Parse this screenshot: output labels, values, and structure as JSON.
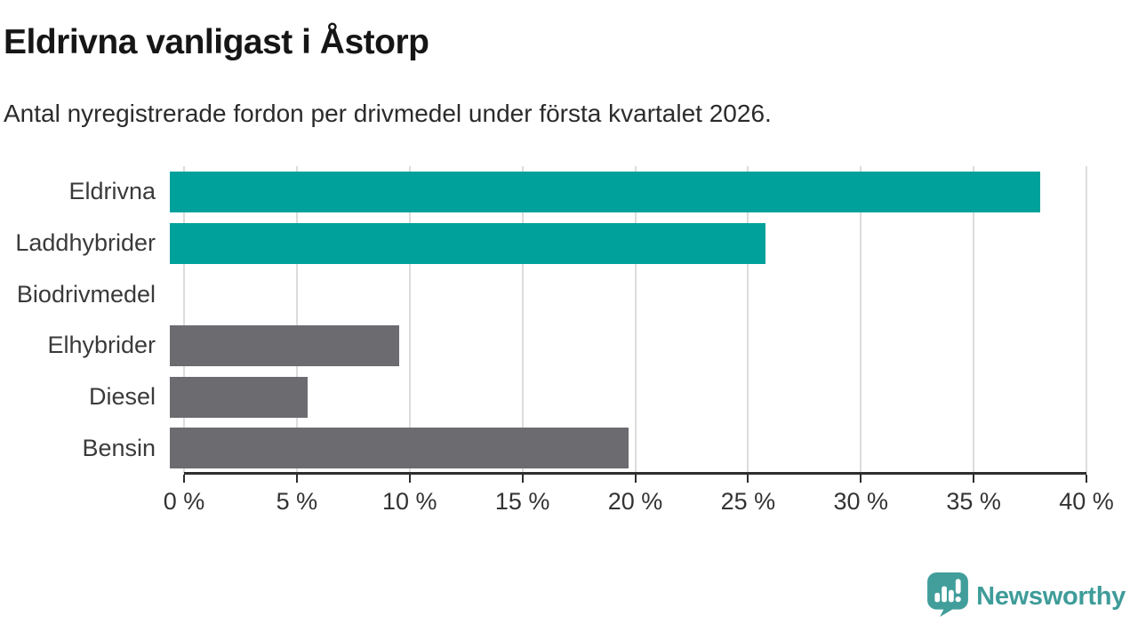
{
  "header": {
    "title": "Eldrivna vanligast i Åstorp",
    "subtitle": "Antal nyregistrerade fordon per drivmedel under första kvartalet 2026."
  },
  "chart_data": {
    "type": "bar",
    "orientation": "horizontal",
    "title": "Eldrivna vanligast i Åstorp",
    "subtitle": "Antal nyregistrerade fordon per drivmedel under första kvartalet 2026.",
    "categories": [
      "Eldrivna",
      "Laddhybrider",
      "Biodrivmedel",
      "Elhybrider",
      "Diesel",
      "Bensin"
    ],
    "values": [
      38,
      26,
      0,
      10,
      6,
      20
    ],
    "unit": "%",
    "xlim": [
      0,
      40
    ],
    "x_tick_step": 5,
    "x_tick_labels": [
      "0 %",
      "5 %",
      "10 %",
      "15 %",
      "20 %",
      "25 %",
      "30 %",
      "35 %",
      "40 %"
    ],
    "bar_colors": [
      "#00A19A",
      "#00A19A",
      "#6B6B70",
      "#6B6B70",
      "#6B6B70",
      "#6B6B70"
    ],
    "grid": true,
    "legend": false
  },
  "colors": {
    "accent_teal": "#00A19A",
    "neutral_gray": "#6B6B70",
    "gridline": "#DCDCDC",
    "axis": "#2E2E2E",
    "text_dark": "#161616",
    "brand_teal": "#3E9C99"
  },
  "footer": {
    "brand": "Newsworthy",
    "logo_icon": "newsworthy-speech-bubble-chart-icon"
  }
}
